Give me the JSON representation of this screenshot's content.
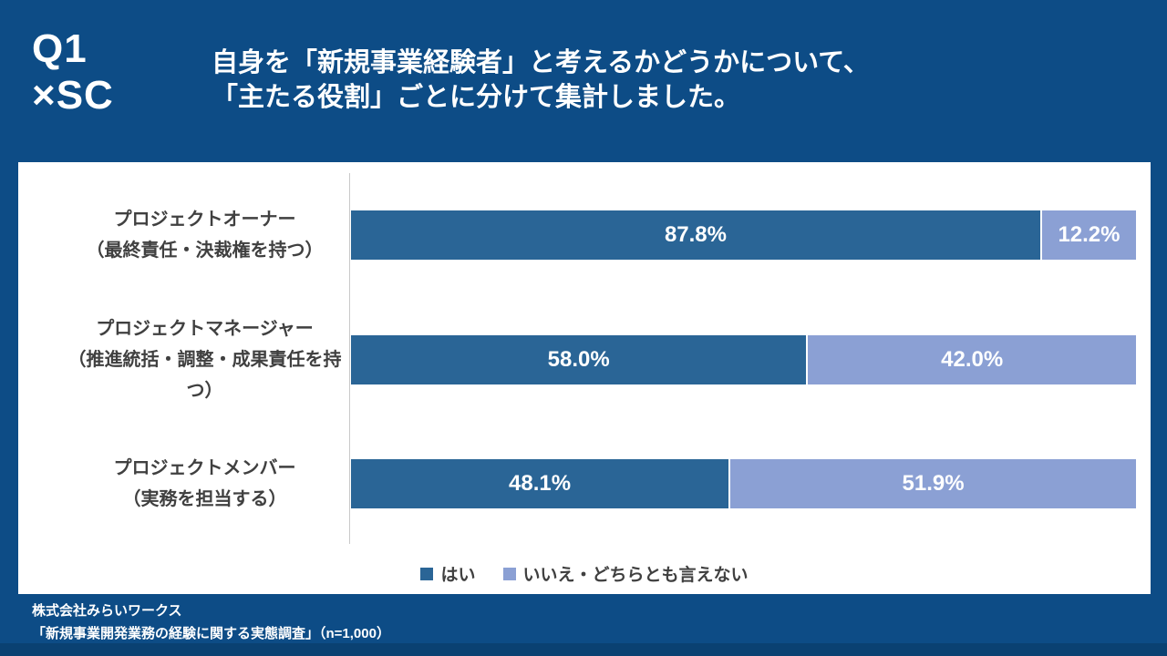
{
  "header": {
    "question_tag": "Q1\n×SC",
    "title_line1": "自身を「新規事業経験者」と考えるかどうかについて、",
    "title_line2": "「主たる役割」ごとに分けて集計しました。"
  },
  "chart_data": {
    "type": "bar",
    "orientation": "horizontal",
    "stacked": true,
    "xlim": [
      0,
      100
    ],
    "value_suffix": "%",
    "grid": false,
    "legend_position": "bottom",
    "categories": [
      [
        "プロジェクトオーナー",
        "（最終責任・決裁権を持つ）"
      ],
      [
        "プロジェクトマネージャー",
        "（推進統括・調整・成果責任を持つ）"
      ],
      [
        "プロジェクトメンバー",
        "（実務を担当する）"
      ]
    ],
    "series": [
      {
        "name": "はい",
        "color": "#2a6596",
        "values": [
          87.8,
          58.0,
          48.1
        ]
      },
      {
        "name": "いいえ・どちらとも言えない",
        "color": "#8ba0d4",
        "values": [
          12.2,
          42.0,
          51.9
        ]
      }
    ]
  },
  "footer": {
    "line1": "株式会社みらいワークス",
    "line2": "「新規事業開発業務の経験に関する実態調査」（n=1,000）"
  },
  "colors": {
    "background": "#0d4c86",
    "panel": "#ffffff",
    "series_yes": "#2a6596",
    "series_no": "#8ba0d4",
    "label_text": "#404040"
  }
}
